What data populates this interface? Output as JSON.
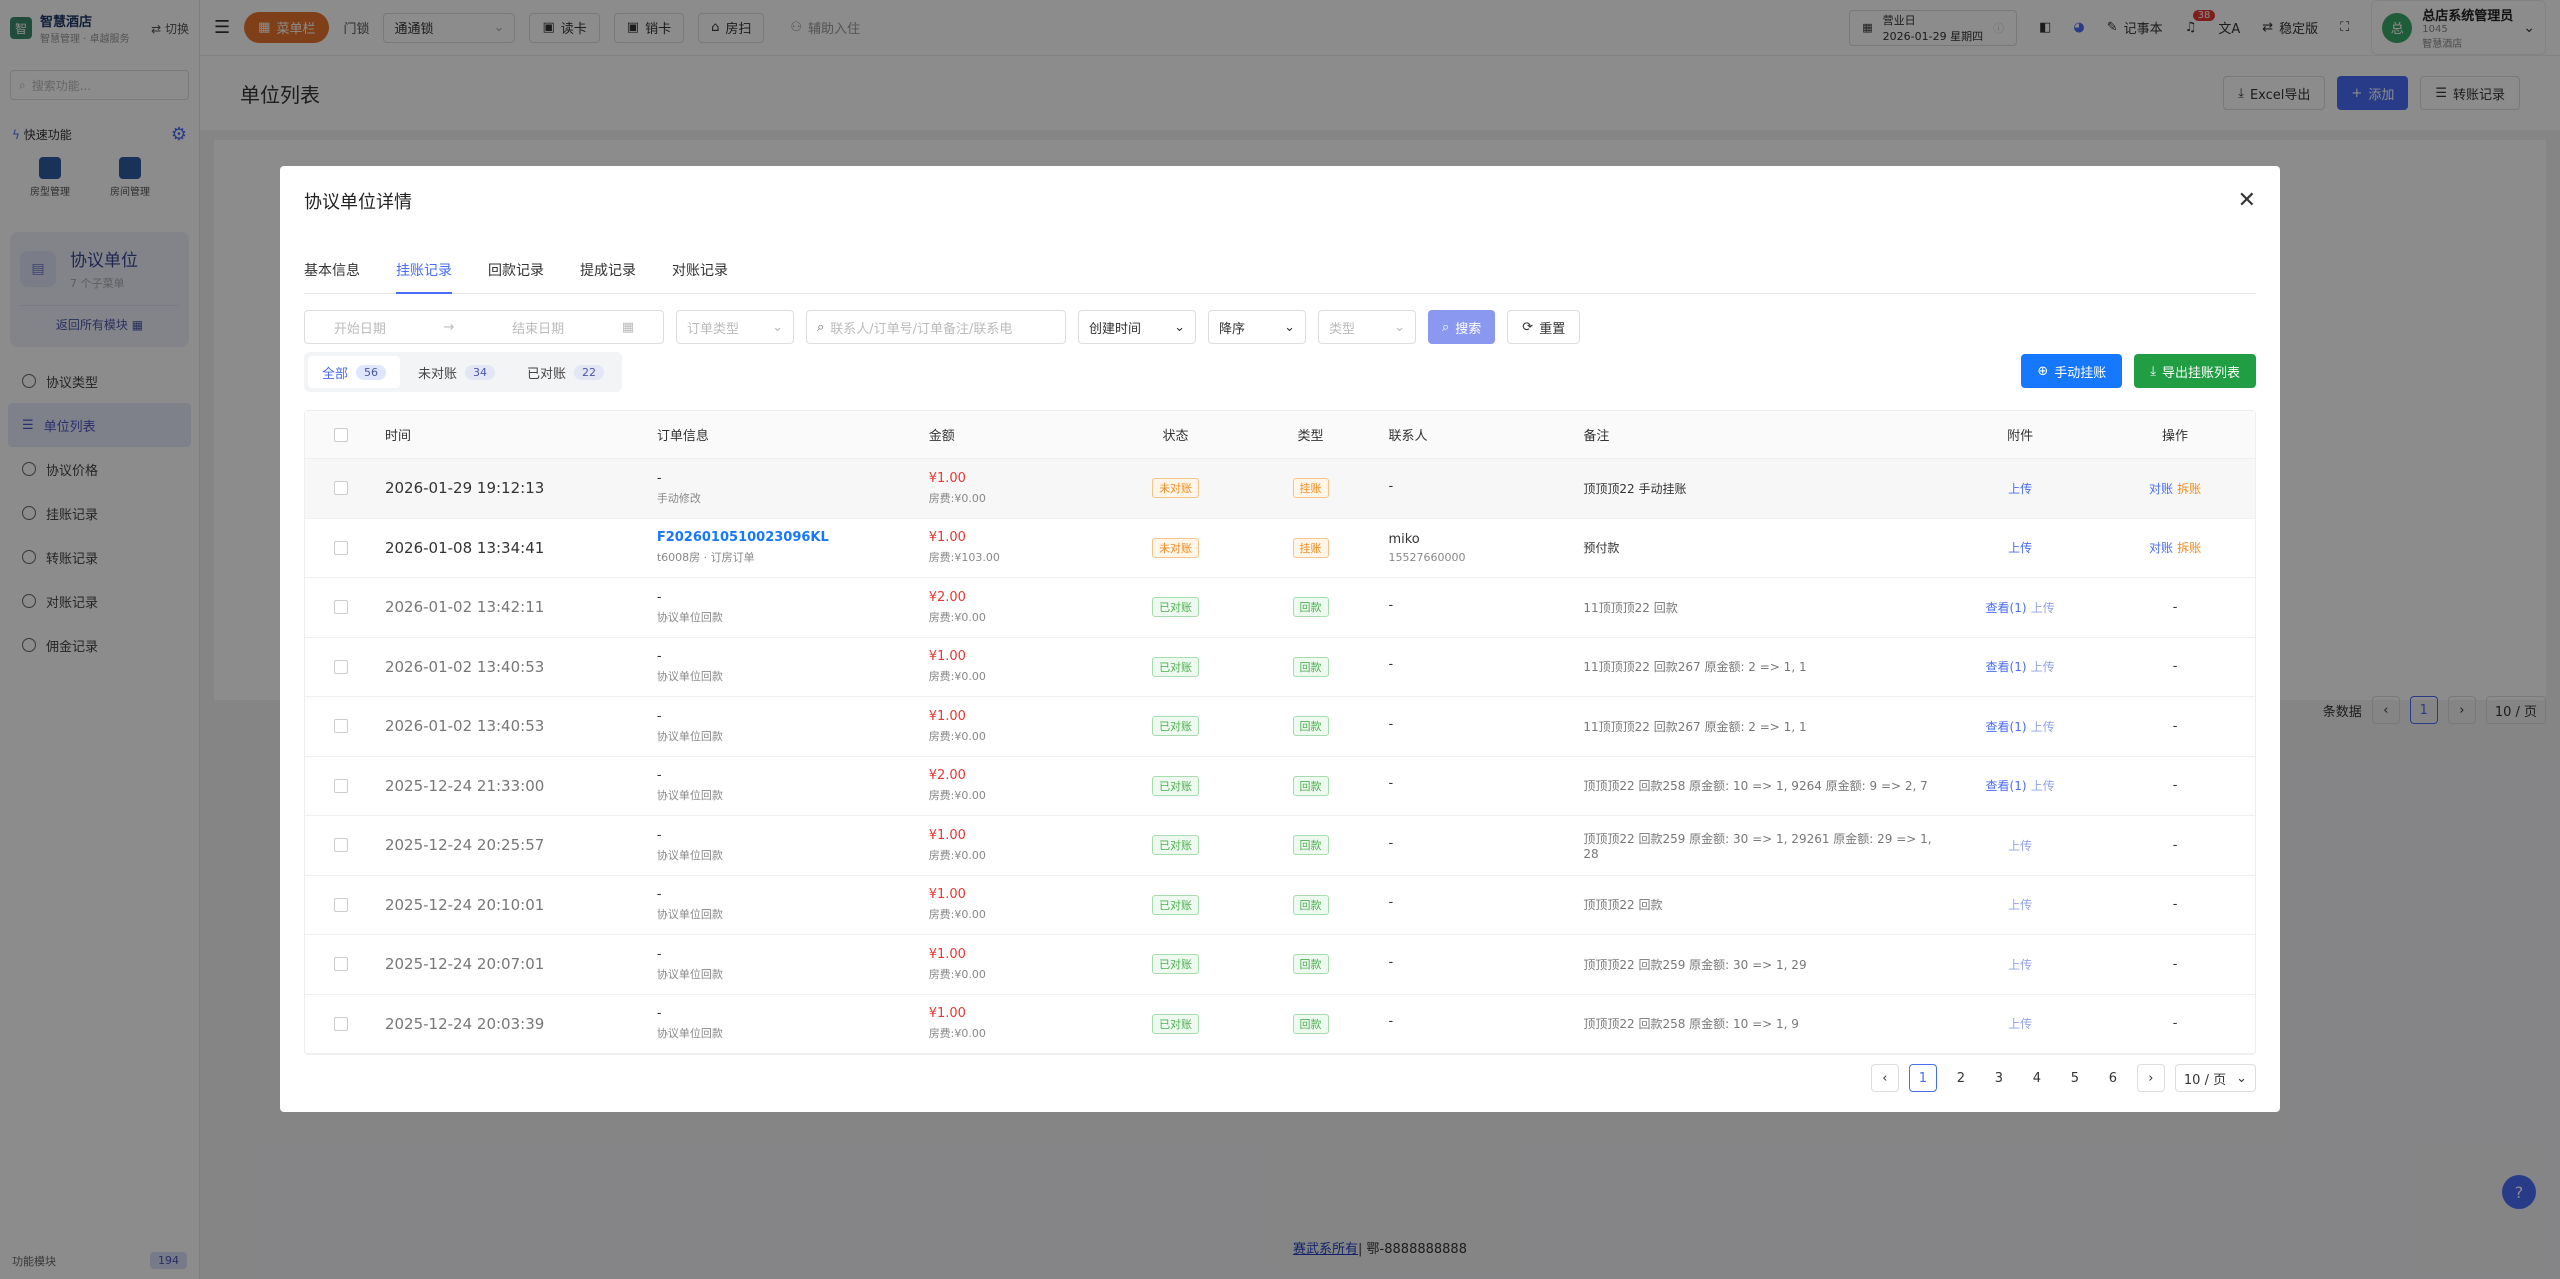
{
  "brand": {
    "title": "智慧酒店",
    "crumb": "智慧管理 · 卓越服务",
    "switch": "切换",
    "logo": "智"
  },
  "sidebar": {
    "search_placeholder": "搜索功能...",
    "quick_label": "快速功能",
    "quick_items": [
      {
        "label": "房型管理"
      },
      {
        "label": "房间管理"
      }
    ],
    "module": {
      "title": "协议单位",
      "sub": "7 个子菜单",
      "back": "返回所有模块"
    },
    "menu": [
      {
        "label": "协议类型"
      },
      {
        "label": "单位列表"
      },
      {
        "label": "协议价格"
      },
      {
        "label": "挂账记录"
      },
      {
        "label": "转账记录"
      },
      {
        "label": "对账记录"
      },
      {
        "label": "佣金记录"
      }
    ],
    "footer": {
      "label": "功能模块",
      "count": "194"
    }
  },
  "topbar": {
    "menu_btn": "菜单栏",
    "store_label": "门锁",
    "store_value": "通通锁",
    "buttons": [
      "读卡",
      "销卡",
      "房扫"
    ],
    "assist": "辅助入住",
    "biz_label": "营业日",
    "biz_date": "2026-01-29 星期四",
    "notebook": "记事本",
    "badge": "38",
    "stable": "稳定版",
    "user": {
      "name": "总店系统管理员",
      "id": "1045",
      "store": "智慧酒店",
      "avatar": "总"
    }
  },
  "page": {
    "title": "单位列表",
    "export": "Excel导出",
    "add": "添加",
    "transfer": "转账记录",
    "bg_pager_total": "条数据",
    "bg_pager_cur": "1",
    "bg_pager_size": "10 / 页",
    "footer_link": "赛武系所有",
    "footer_phone": "| 鄂-8888888888"
  },
  "modal": {
    "title": "协议单位详情",
    "tabs": [
      {
        "label": "基本信息"
      },
      {
        "label": "挂账记录"
      },
      {
        "label": "回款记录"
      },
      {
        "label": "提成记录"
      },
      {
        "label": "对账记录"
      }
    ],
    "filters": {
      "start_date": "开始日期",
      "end_date": "结束日期",
      "order_type": "订单类型",
      "keyword": "联系人/订单号/订单备注/联系电",
      "sort_field": "创建时间",
      "sort_order": "降序",
      "type": "类型",
      "search": "搜索",
      "reset": "重置"
    },
    "segments": [
      {
        "label": "全部",
        "count": "56"
      },
      {
        "label": "未对账",
        "count": "34"
      },
      {
        "label": "已对账",
        "count": "22"
      }
    ],
    "actions": {
      "manual": "手动挂账",
      "export": "导出挂账列表"
    },
    "columns": [
      "时间",
      "订单信息",
      "金额",
      "状态",
      "类型",
      "联系人",
      "备注",
      "附件",
      "操作"
    ],
    "rows": [
      {
        "time": "2026-01-29 19:12:13",
        "order": "-",
        "order_sub": "手动修改",
        "amount": "¥1.00",
        "amount_sub": "房费:¥0.00",
        "status": "未对账",
        "type": "挂账",
        "contact": "-",
        "contact_sub": "",
        "note": "顶顶顶22 手动挂账",
        "att_view": "",
        "att": "上传",
        "op1": "对账",
        "op2": "拆账"
      },
      {
        "time": "2026-01-08 13:34:41",
        "order": "F2026010510023096KL",
        "order_sub": "t6008房 · 订房订单",
        "amount": "¥1.00",
        "amount_sub": "房费:¥103.00",
        "status": "未对账",
        "type": "挂账",
        "contact": "miko",
        "contact_sub": "15527660000",
        "note": "预付款",
        "att_view": "",
        "att": "上传",
        "op1": "对账",
        "op2": "拆账"
      },
      {
        "time": "2026-01-02 13:42:11",
        "order": "-",
        "order_sub": "协议单位回款",
        "amount": "¥2.00",
        "amount_sub": "房费:¥0.00",
        "status": "已对账",
        "type": "回款",
        "contact": "-",
        "contact_sub": "",
        "note": "11顶顶顶22 回款",
        "att_view": "查看(1)",
        "att": "上传",
        "op1": "-",
        "op2": ""
      },
      {
        "time": "2026-01-02 13:40:53",
        "order": "-",
        "order_sub": "协议单位回款",
        "amount": "¥1.00",
        "amount_sub": "房费:¥0.00",
        "status": "已对账",
        "type": "回款",
        "contact": "-",
        "contact_sub": "",
        "note": "11顶顶顶22 回款267 原金额: 2 => 1, 1",
        "att_view": "查看(1)",
        "att": "上传",
        "op1": "-",
        "op2": ""
      },
      {
        "time": "2026-01-02 13:40:53",
        "order": "-",
        "order_sub": "协议单位回款",
        "amount": "¥1.00",
        "amount_sub": "房费:¥0.00",
        "status": "已对账",
        "type": "回款",
        "contact": "-",
        "contact_sub": "",
        "note": "11顶顶顶22 回款267 原金额: 2 => 1, 1",
        "att_view": "查看(1)",
        "att": "上传",
        "op1": "-",
        "op2": ""
      },
      {
        "time": "2025-12-24 21:33:00",
        "order": "-",
        "order_sub": "协议单位回款",
        "amount": "¥2.00",
        "amount_sub": "房费:¥0.00",
        "status": "已对账",
        "type": "回款",
        "contact": "-",
        "contact_sub": "",
        "note": "顶顶顶22 回款258 原金额: 10 => 1, 9264 原金额: 9 => 2, 7",
        "att_view": "查看(1)",
        "att": "上传",
        "op1": "-",
        "op2": ""
      },
      {
        "time": "2025-12-24 20:25:57",
        "order": "-",
        "order_sub": "协议单位回款",
        "amount": "¥1.00",
        "amount_sub": "房费:¥0.00",
        "status": "已对账",
        "type": "回款",
        "contact": "-",
        "contact_sub": "",
        "note": "顶顶顶22 回款259 原金额: 30 => 1, 29261 原金额: 29 => 1, 28",
        "att_view": "",
        "att": "上传",
        "op1": "-",
        "op2": ""
      },
      {
        "time": "2025-12-24 20:10:01",
        "order": "-",
        "order_sub": "协议单位回款",
        "amount": "¥1.00",
        "amount_sub": "房费:¥0.00",
        "status": "已对账",
        "type": "回款",
        "contact": "-",
        "contact_sub": "",
        "note": "顶顶顶22 回款",
        "att_view": "",
        "att": "上传",
        "op1": "-",
        "op2": ""
      },
      {
        "time": "2025-12-24 20:07:01",
        "order": "-",
        "order_sub": "协议单位回款",
        "amount": "¥1.00",
        "amount_sub": "房费:¥0.00",
        "status": "已对账",
        "type": "回款",
        "contact": "-",
        "contact_sub": "",
        "note": "顶顶顶22 回款259 原金额: 30 => 1, 29",
        "att_view": "",
        "att": "上传",
        "op1": "-",
        "op2": ""
      },
      {
        "time": "2025-12-24 20:03:39",
        "order": "-",
        "order_sub": "协议单位回款",
        "amount": "¥1.00",
        "amount_sub": "房费:¥0.00",
        "status": "已对账",
        "type": "回款",
        "contact": "-",
        "contact_sub": "",
        "note": "顶顶顶22 回款258 原金额: 10 => 1, 9",
        "att_view": "",
        "att": "上传",
        "op1": "-",
        "op2": ""
      }
    ],
    "pagination": {
      "pages": [
        "1",
        "2",
        "3",
        "4",
        "5",
        "6"
      ],
      "current": "1",
      "size": "10 / 页"
    }
  }
}
